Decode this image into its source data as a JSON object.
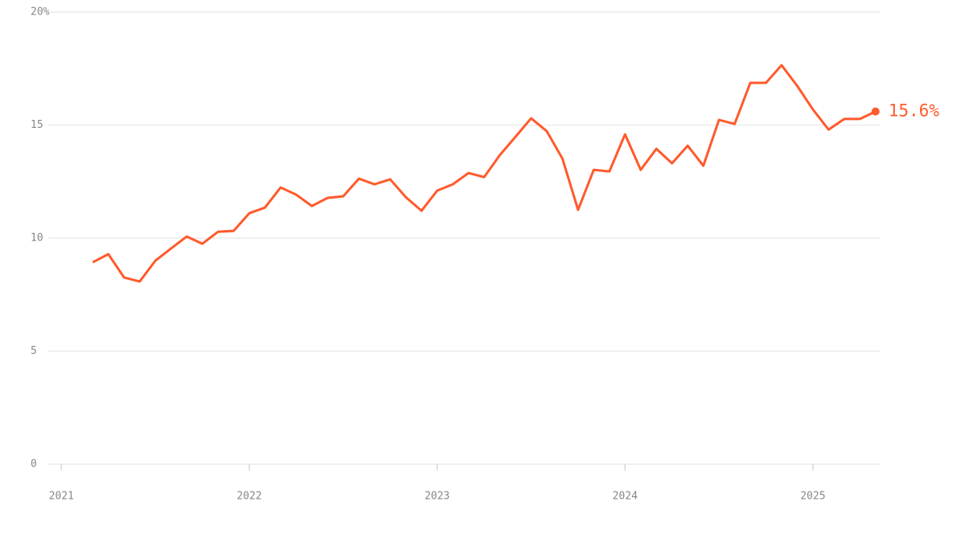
{
  "chart_data": {
    "type": "line",
    "x": [
      2021.1667,
      2021.25,
      2021.3333,
      2021.4167,
      2021.5,
      2021.5833,
      2021.6667,
      2021.75,
      2021.8333,
      2021.9167,
      2022,
      2022.0833,
      2022.1667,
      2022.25,
      2022.3333,
      2022.4167,
      2022.5,
      2022.5833,
      2022.6667,
      2022.75,
      2022.8333,
      2022.9167,
      2023,
      2023.0833,
      2023.1667,
      2023.25,
      2023.3333,
      2023.4167,
      2023.5,
      2023.5833,
      2023.6667,
      2023.75,
      2023.8333,
      2023.9167,
      2024,
      2024.0833,
      2024.1667,
      2024.25,
      2024.3333,
      2024.4167,
      2024.5,
      2024.5833,
      2024.6667,
      2024.75,
      2024.8333,
      2024.9167,
      2025,
      2025.0833,
      2025.1667,
      2025.25,
      2025.3333
    ],
    "series": [
      {
        "color": "#ff5a2c",
        "values": [
          8.93,
          9.29,
          8.26,
          8.08,
          9.0,
          9.54,
          10.07,
          9.75,
          10.28,
          10.32,
          11.1,
          11.35,
          12.24,
          11.92,
          11.42,
          11.78,
          11.85,
          12.63,
          12.38,
          12.6,
          11.81,
          11.21,
          12.1,
          12.38,
          12.88,
          12.7,
          13.67,
          14.48,
          15.3,
          14.73,
          13.52,
          11.25,
          13.02,
          12.95,
          14.59,
          13.02,
          13.95,
          13.31,
          14.09,
          13.2,
          15.23,
          15.05,
          16.87,
          16.87,
          17.65,
          16.73,
          15.69,
          14.8,
          15.27,
          15.27,
          15.6
        ]
      }
    ],
    "end_label": "15.6%",
    "xlim": [
      2020.93,
      2025.36
    ],
    "xticks": [
      2021,
      2022,
      2023,
      2024,
      2025
    ],
    "ylim": [
      0,
      20
    ],
    "yticks": [
      0,
      5,
      10,
      15,
      {
        "value": 20,
        "label": "20%"
      }
    ],
    "grid": true
  }
}
